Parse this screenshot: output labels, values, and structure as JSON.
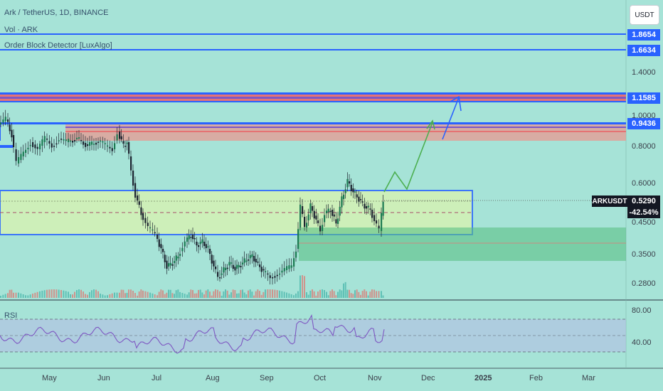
{
  "legend": {
    "title": "Ark / TetherUS, 1D, BINANCE",
    "vol": "Vol · ARK",
    "indicator": "Order Block Detector [LuxAlgo]",
    "rsi": "RSI"
  },
  "currency_button": "USDT",
  "price_axis": [
    "1.4000",
    "1.0000",
    "0.8000",
    "0.6000",
    "0.4500",
    "0.3500",
    "0.2800"
  ],
  "price_tags": {
    "t1": "1.8654",
    "t2": "1.6634",
    "t3": "1.1585",
    "t4": "0.9436",
    "symbol": "ARKUSDT",
    "current": "0.5290",
    "change": "-42.54%"
  },
  "rsi_axis": [
    "80.00",
    "40.00"
  ],
  "time_axis": [
    "May",
    "Jun",
    "Jul",
    "Aug",
    "Sep",
    "Oct",
    "Nov",
    "Dec",
    "2025",
    "Feb",
    "Mar"
  ],
  "colors": {
    "background": "#a6e3d7",
    "up": "#26a69a",
    "down": "#ef5350",
    "blue_line": "#2962ff",
    "rsi": "#7e57c2",
    "projection": "#4caf50"
  }
}
